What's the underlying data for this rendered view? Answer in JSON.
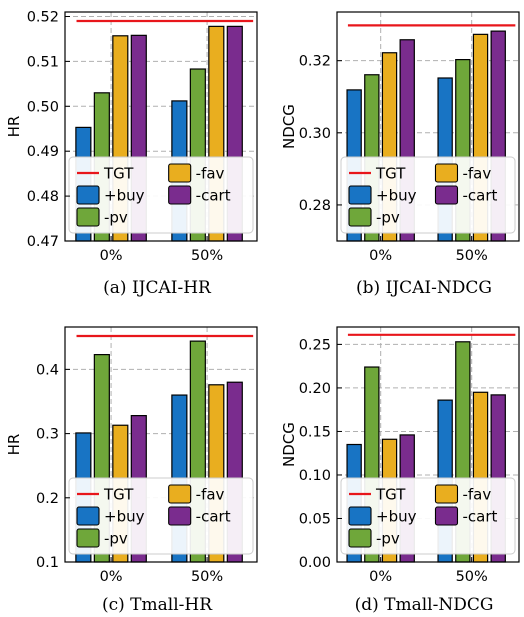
{
  "colors": {
    "tgt": "#e8161b",
    "buy": "#1874c4",
    "pv": "#6fa73a",
    "fav": "#e9ae1f",
    "cart": "#7a2c8e",
    "grid": "#b0b0b0"
  },
  "legend": {
    "tgt": "TGT",
    "fav": "-fav",
    "buy": "+buy",
    "cart": "-cart",
    "pv": "-pv"
  },
  "chart_data": [
    {
      "type": "bar",
      "caption": "(a) IJCAI-HR",
      "ylabel": "HR",
      "categories": [
        "0%",
        "50%"
      ],
      "ylim": [
        0.47,
        0.521
      ],
      "yticks": [
        "0.47",
        "0.48",
        "0.49",
        "0.50",
        "0.51",
        "0.52"
      ],
      "tgt": 0.519,
      "series": [
        {
          "key": "buy",
          "name": "+buy",
          "values": [
            0.4953,
            0.5012
          ]
        },
        {
          "key": "pv",
          "name": "-pv",
          "values": [
            0.503,
            0.5083
          ]
        },
        {
          "key": "fav",
          "name": "-fav",
          "values": [
            0.5157,
            0.5178
          ]
        },
        {
          "key": "cart",
          "name": "-cart",
          "values": [
            0.5158,
            0.5178
          ]
        }
      ],
      "grid": true
    },
    {
      "type": "bar",
      "caption": "(b) IJCAI-NDCG",
      "ylabel": "NDCG",
      "categories": [
        "0%",
        "50%"
      ],
      "ylim": [
        0.27,
        0.3335
      ],
      "yticks": [
        "0.28",
        "0.30",
        "0.32"
      ],
      "tgt": 0.3298,
      "series": [
        {
          "key": "buy",
          "name": "+buy",
          "values": [
            0.3119,
            0.3152
          ]
        },
        {
          "key": "pv",
          "name": "-pv",
          "values": [
            0.3161,
            0.3203
          ]
        },
        {
          "key": "fav",
          "name": "-fav",
          "values": [
            0.3222,
            0.3273
          ]
        },
        {
          "key": "cart",
          "name": "-cart",
          "values": [
            0.3258,
            0.3282
          ]
        }
      ],
      "grid": true
    },
    {
      "type": "bar",
      "caption": "(c) Tmall-HR",
      "ylabel": "HR",
      "categories": [
        "0%",
        "50%"
      ],
      "ylim": [
        0.1,
        0.466
      ],
      "yticks": [
        "0.1",
        "0.2",
        "0.3",
        "0.4"
      ],
      "tgt": 0.452,
      "series": [
        {
          "key": "buy",
          "name": "+buy",
          "values": [
            0.301,
            0.36
          ]
        },
        {
          "key": "pv",
          "name": "-pv",
          "values": [
            0.423,
            0.444
          ]
        },
        {
          "key": "fav",
          "name": "-fav",
          "values": [
            0.313,
            0.376
          ]
        },
        {
          "key": "cart",
          "name": "-cart",
          "values": [
            0.328,
            0.38
          ]
        }
      ],
      "grid": true
    },
    {
      "type": "bar",
      "caption": "(d) Tmall-NDCG",
      "ylabel": "NDCG",
      "categories": [
        "0%",
        "50%"
      ],
      "ylim": [
        0.0,
        0.27
      ],
      "yticks": [
        "0.00",
        "0.05",
        "0.10",
        "0.15",
        "0.20",
        "0.25"
      ],
      "tgt": 0.261,
      "series": [
        {
          "key": "buy",
          "name": "+buy",
          "values": [
            0.135,
            0.186
          ]
        },
        {
          "key": "pv",
          "name": "-pv",
          "values": [
            0.224,
            0.253
          ]
        },
        {
          "key": "fav",
          "name": "-fav",
          "values": [
            0.141,
            0.195
          ]
        },
        {
          "key": "cart",
          "name": "-cart",
          "values": [
            0.146,
            0.192
          ]
        }
      ],
      "grid": true
    }
  ]
}
